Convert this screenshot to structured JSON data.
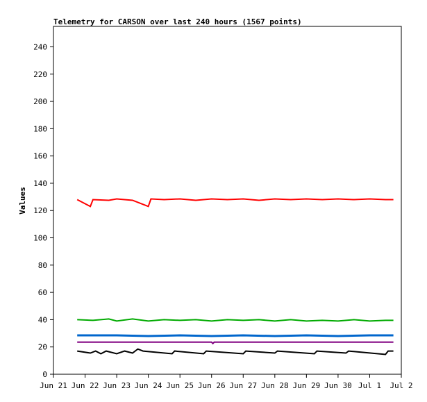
{
  "chart_data": {
    "type": "line",
    "title": "Telemetry for CARSON over last 240 hours (1567 points)",
    "xlabel": "",
    "ylabel": "Values",
    "ylim": [
      0,
      255
    ],
    "yticks": [
      0,
      20,
      40,
      60,
      80,
      100,
      120,
      140,
      160,
      180,
      200,
      220,
      240
    ],
    "xlim": [
      "2021-06-21",
      "2021-07-02"
    ],
    "xticks": [
      "Jun 21",
      "Jun 22",
      "Jun 23",
      "Jun 24",
      "Jun 25",
      "Jun 26",
      "Jun 27",
      "Jun 28",
      "Jun 29",
      "Jun 30",
      "Jul 1",
      "Jul 2"
    ],
    "grid": false,
    "legend": "none",
    "series": [
      {
        "color": "#ff0000",
        "points": [
          [
            "2021-06-21T18:00",
            128
          ],
          [
            "2021-06-22T04:00",
            123
          ],
          [
            "2021-06-22T06:00",
            128
          ],
          [
            "2021-06-22T18:00",
            127.5
          ],
          [
            "2021-06-23T00:00",
            128.5
          ],
          [
            "2021-06-23T12:00",
            127.5
          ],
          [
            "2021-06-24T00:00",
            123
          ],
          [
            "2021-06-24T02:00",
            128.5
          ],
          [
            "2021-06-24T12:00",
            128
          ],
          [
            "2021-06-25T00:00",
            128.5
          ],
          [
            "2021-06-25T12:00",
            127.5
          ],
          [
            "2021-06-26T00:00",
            128.5
          ],
          [
            "2021-06-26T12:00",
            128
          ],
          [
            "2021-06-27T00:00",
            128.5
          ],
          [
            "2021-06-27T12:00",
            127.5
          ],
          [
            "2021-06-28T00:00",
            128.5
          ],
          [
            "2021-06-28T12:00",
            128
          ],
          [
            "2021-06-29T00:00",
            128.5
          ],
          [
            "2021-06-29T12:00",
            128
          ],
          [
            "2021-06-30T00:00",
            128.5
          ],
          [
            "2021-06-30T12:00",
            128
          ],
          [
            "2021-07-01T00:00",
            128.5
          ],
          [
            "2021-07-01T12:00",
            128
          ],
          [
            "2021-07-01T18:00",
            128
          ]
        ]
      },
      {
        "color": "#00aa00",
        "points": [
          [
            "2021-06-21T18:00",
            40
          ],
          [
            "2021-06-22T06:00",
            39.5
          ],
          [
            "2021-06-22T18:00",
            40.5
          ],
          [
            "2021-06-23T00:00",
            39
          ],
          [
            "2021-06-23T12:00",
            40.5
          ],
          [
            "2021-06-24T00:00",
            39
          ],
          [
            "2021-06-24T12:00",
            40
          ],
          [
            "2021-06-25T00:00",
            39.5
          ],
          [
            "2021-06-25T12:00",
            40
          ],
          [
            "2021-06-26T00:00",
            39
          ],
          [
            "2021-06-26T12:00",
            40
          ],
          [
            "2021-06-27T00:00",
            39.5
          ],
          [
            "2021-06-27T12:00",
            40
          ],
          [
            "2021-06-28T00:00",
            39
          ],
          [
            "2021-06-28T12:00",
            40
          ],
          [
            "2021-06-29T00:00",
            39
          ],
          [
            "2021-06-29T12:00",
            39.5
          ],
          [
            "2021-06-30T00:00",
            39
          ],
          [
            "2021-06-30T12:00",
            40
          ],
          [
            "2021-07-01T00:00",
            39
          ],
          [
            "2021-07-01T12:00",
            39.5
          ],
          [
            "2021-07-01T18:00",
            39.5
          ]
        ]
      },
      {
        "color": "#0066cc",
        "points": [
          [
            "2021-06-21T18:00",
            28.5
          ],
          [
            "2021-06-23T00:00",
            28.5
          ],
          [
            "2021-06-24T00:00",
            28
          ],
          [
            "2021-06-25T00:00",
            28.5
          ],
          [
            "2021-06-26T00:00",
            28
          ],
          [
            "2021-06-27T00:00",
            28.5
          ],
          [
            "2021-06-28T00:00",
            28
          ],
          [
            "2021-06-29T00:00",
            28.5
          ],
          [
            "2021-06-30T00:00",
            28
          ],
          [
            "2021-07-01T00:00",
            28.5
          ],
          [
            "2021-07-01T18:00",
            28.5
          ]
        ]
      },
      {
        "color": "#800080",
        "points": [
          [
            "2021-06-21T18:00",
            23.5
          ],
          [
            "2021-06-26T00:00",
            23.5
          ],
          [
            "2021-06-26T01:00",
            22.5
          ],
          [
            "2021-06-26T02:00",
            23.5
          ],
          [
            "2021-07-01T18:00",
            23.5
          ]
        ]
      },
      {
        "color": "#000000",
        "points": [
          [
            "2021-06-21T18:00",
            17
          ],
          [
            "2021-06-22T04:00",
            15.5
          ],
          [
            "2021-06-22T08:00",
            17
          ],
          [
            "2021-06-22T12:00",
            15
          ],
          [
            "2021-06-22T16:00",
            17
          ],
          [
            "2021-06-23T00:00",
            15
          ],
          [
            "2021-06-23T06:00",
            17
          ],
          [
            "2021-06-23T12:00",
            15.5
          ],
          [
            "2021-06-23T16:00",
            18.5
          ],
          [
            "2021-06-23T20:00",
            17
          ],
          [
            "2021-06-24T18:00",
            15
          ],
          [
            "2021-06-24T20:00",
            17
          ],
          [
            "2021-06-25T18:00",
            15
          ],
          [
            "2021-06-25T20:00",
            17
          ],
          [
            "2021-06-27T00:00",
            15
          ],
          [
            "2021-06-27T02:00",
            17
          ],
          [
            "2021-06-28T00:00",
            15.5
          ],
          [
            "2021-06-28T02:00",
            17
          ],
          [
            "2021-06-29T06:00",
            15
          ],
          [
            "2021-06-29T08:00",
            17
          ],
          [
            "2021-06-30T06:00",
            15.5
          ],
          [
            "2021-06-30T08:00",
            17
          ],
          [
            "2021-07-01T12:00",
            14.5
          ],
          [
            "2021-07-01T14:00",
            17
          ],
          [
            "2021-07-01T18:00",
            17
          ]
        ]
      }
    ]
  }
}
